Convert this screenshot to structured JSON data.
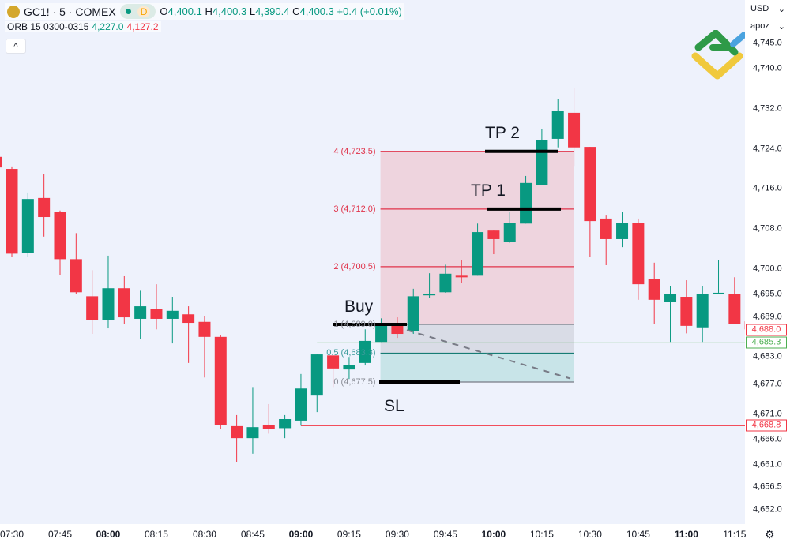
{
  "header": {
    "symbol": "GC1! · 5 · COMEX",
    "badge_letter": "D",
    "open_label": "O",
    "open": "4,400.1",
    "high_label": "H",
    "high": "4,400.3",
    "low_label": "L",
    "low": "4,390.4",
    "close_label": "C",
    "close": "4,400.3",
    "change": "+0.4 (+0.01%)"
  },
  "indicator": {
    "name": "ORB 15 0300-0315",
    "upper": "4,227.0",
    "lower": "4,127.2"
  },
  "collapse_icon": "^",
  "currency": "USD",
  "scale_menu": "apoz",
  "colors": {
    "up": "#089981",
    "down": "#f23645",
    "background": "#eef2fc"
  },
  "price_axis": [
    "4,745.0",
    "4,740.0",
    "4,732.0",
    "4,724.0",
    "4,716.0",
    "4,708.0",
    "4,700.0",
    "4,695.0",
    "4,689.0",
    "4,683.0",
    "4,677.0",
    "4,671.0",
    "4,666.0",
    "4,661.0",
    "4,656.5",
    "4,652.0"
  ],
  "price_tags": [
    {
      "value": "4,688.0",
      "color": "#f23645"
    },
    {
      "value": "4,685.3",
      "color": "#4caf50"
    },
    {
      "value": "4,668.8",
      "color": "#f23645"
    }
  ],
  "time_axis": [
    {
      "t": "07:30",
      "bold": false
    },
    {
      "t": "07:45",
      "bold": false
    },
    {
      "t": "08:00",
      "bold": true
    },
    {
      "t": "08:15",
      "bold": false
    },
    {
      "t": "08:30",
      "bold": false
    },
    {
      "t": "08:45",
      "bold": false
    },
    {
      "t": "09:00",
      "bold": true
    },
    {
      "t": "09:15",
      "bold": false
    },
    {
      "t": "09:30",
      "bold": false
    },
    {
      "t": "09:45",
      "bold": false
    },
    {
      "t": "10:00",
      "bold": true
    },
    {
      "t": "10:15",
      "bold": false
    },
    {
      "t": "10:30",
      "bold": false
    },
    {
      "t": "10:45",
      "bold": false
    },
    {
      "t": "11:00",
      "bold": true
    },
    {
      "t": "11:15",
      "bold": false
    }
  ],
  "position_levels": [
    {
      "label": "4 (4,723.5)",
      "price": 4723.5
    },
    {
      "label": "3 (4,712.0)",
      "price": 4712.0
    },
    {
      "label": "2 (4,700.5)",
      "price": 4700.5
    },
    {
      "label": "1 (4,689.0)",
      "price": 4689.0
    },
    {
      "label": "0.5 (4,683.3)",
      "price": 4683.25
    },
    {
      "label": "0 (4,677.5)",
      "price": 4677.5
    }
  ],
  "annotations": {
    "buy": "Buy",
    "sl": "SL",
    "tp1": "TP 1",
    "tp2": "TP 2"
  },
  "horizontal_lines": [
    {
      "price": 4685.3,
      "color": "#4caf50",
      "from": "09:05"
    },
    {
      "price": 4668.8,
      "color": "#f23645",
      "from": "09:00"
    }
  ],
  "candles": [
    [
      "07:25",
      4722.4,
      4722.4,
      4720.3,
      4720.3
    ],
    [
      "07:30",
      4720.0,
      4720.5,
      4702.5,
      4703.1
    ],
    [
      "07:35",
      4703.3,
      4715.3,
      4702.5,
      4714.0
    ],
    [
      "07:40",
      4714.2,
      4718.9,
      4706.5,
      4710.4
    ],
    [
      "07:45",
      4711.5,
      4711.7,
      4698.9,
      4702.0
    ],
    [
      "07:50",
      4702.0,
      4707.2,
      4695.1,
      4695.4
    ],
    [
      "07:55",
      4694.6,
      4699.8,
      4687.1,
      4689.8
    ],
    [
      "08:00",
      4689.9,
      4702.7,
      4688.2,
      4696.2
    ],
    [
      "08:05",
      4696.2,
      4698.6,
      4689.1,
      4690.4
    ],
    [
      "08:10",
      4690.1,
      4695.7,
      4686.0,
      4692.6
    ],
    [
      "08:15",
      4692.0,
      4697.0,
      4688.0,
      4690.1
    ],
    [
      "08:20",
      4690.1,
      4694.5,
      4685.2,
      4691.7
    ],
    [
      "08:25",
      4691.0,
      4692.6,
      4681.3,
      4689.3
    ],
    [
      "08:30",
      4689.5,
      4690.7,
      4678.4,
      4686.5
    ],
    [
      "08:35",
      4686.5,
      4686.8,
      4668.2,
      4669.0
    ],
    [
      "08:40",
      4668.7,
      4670.9,
      4661.6,
      4666.3
    ],
    [
      "08:45",
      4666.3,
      4676.5,
      4663.2,
      4668.5
    ],
    [
      "08:50",
      4669.0,
      4673.1,
      4667.2,
      4668.2
    ],
    [
      "08:55",
      4668.3,
      4670.9,
      4666.3,
      4670.1
    ],
    [
      "09:00",
      4669.8,
      4679.1,
      4668.8,
      4676.2
    ],
    [
      "09:05",
      4674.8,
      4683.0,
      4671.5,
      4683.0
    ],
    [
      "09:10",
      4682.8,
      4682.8,
      4676.5,
      4680.2
    ],
    [
      "09:15",
      4680.0,
      4682.5,
      4678.1,
      4680.9
    ],
    [
      "09:20",
      4681.3,
      4688.0,
      4680.8,
      4685.7
    ],
    [
      "09:25",
      4685.5,
      4690.2,
      4685.5,
      4688.7
    ],
    [
      "09:30",
      4688.8,
      4690.4,
      4686.3,
      4687.1
    ],
    [
      "09:35",
      4687.7,
      4696.1,
      4687.1,
      4694.6
    ],
    [
      "09:40",
      4694.8,
      4699.2,
      4694.2,
      4695.1
    ],
    [
      "09:45",
      4695.4,
      4700.9,
      4695.3,
      4699.1
    ],
    [
      "09:50",
      4698.7,
      4701.9,
      4697.3,
      4698.6
    ],
    [
      "09:55",
      4698.7,
      4709.1,
      4698.7,
      4707.4
    ],
    [
      "10:00",
      4707.7,
      4707.7,
      4703.0,
      4706.0
    ],
    [
      "10:05",
      4705.5,
      4711.5,
      4705.2,
      4709.3
    ],
    [
      "10:10",
      4709.1,
      4718.6,
      4709.1,
      4717.2
    ],
    [
      "10:15",
      4716.7,
      4728.0,
      4716.7,
      4725.8
    ],
    [
      "10:20",
      4726.0,
      4734.0,
      4724.3,
      4731.5
    ],
    [
      "10:25",
      4731.2,
      4736.2,
      4720.6,
      4724.3
    ],
    [
      "10:30",
      4724.4,
      4724.4,
      4702.5,
      4709.6
    ],
    [
      "10:35",
      4710.1,
      4710.7,
      4700.8,
      4706.0
    ],
    [
      "10:40",
      4706.0,
      4711.5,
      4704.4,
      4709.3
    ],
    [
      "10:45",
      4709.3,
      4710.1,
      4693.9,
      4697.0
    ],
    [
      "10:50",
      4698.0,
      4701.3,
      4689.0,
      4693.9
    ],
    [
      "10:55",
      4693.4,
      4696.7,
      4685.5,
      4695.1
    ],
    [
      "11:00",
      4694.5,
      4697.8,
      4687.2,
      4688.7
    ],
    [
      "11:05",
      4688.4,
      4696.7,
      4685.5,
      4695.0
    ],
    [
      "11:10",
      4695.3,
      4701.9,
      4695.3,
      4695.3
    ],
    [
      "11:15",
      4695.0,
      4698.4,
      4689.1,
      4689.1
    ],
    [
      "11:20",
      4689.6,
      4689.6,
      4688.0,
      4688.0
    ]
  ]
}
